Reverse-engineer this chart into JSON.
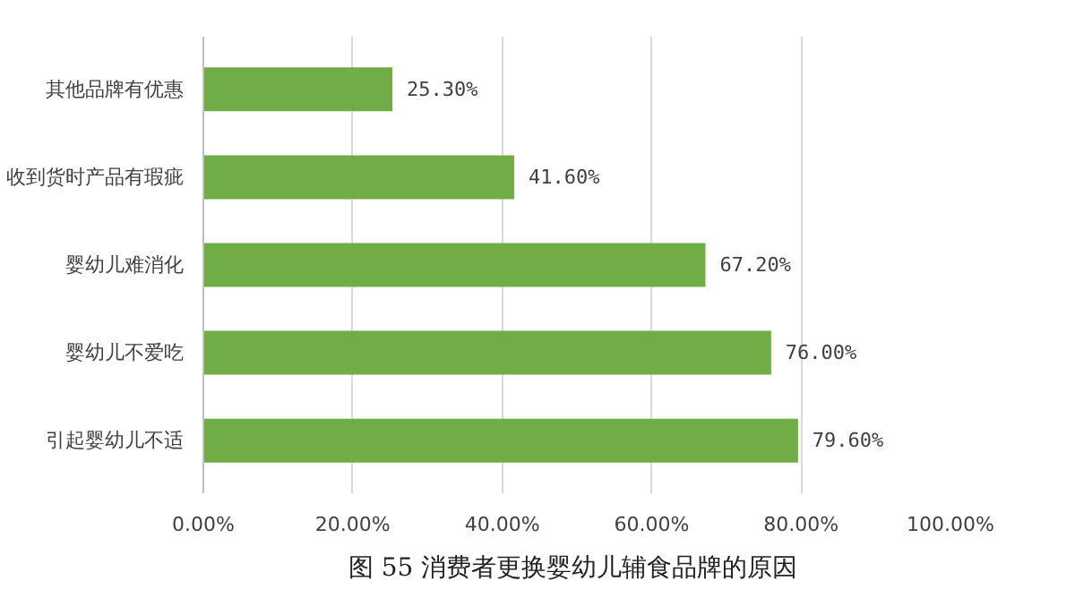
{
  "chart_data": {
    "type": "bar",
    "orientation": "horizontal",
    "title": "图 55  消费者更换婴幼儿辅食品牌的原因",
    "categories": [
      "其他品牌有优惠",
      "收到货时产品有瑕疵",
      "婴幼儿难消化",
      "婴幼儿不爱吃",
      "引起婴幼儿不适"
    ],
    "values": [
      25.3,
      41.6,
      67.2,
      76.0,
      79.6
    ],
    "value_labels": [
      "25.30%",
      "41.60%",
      "67.20%",
      "76.00%",
      "79.60%"
    ],
    "color": "#70ad47",
    "xlim": [
      0,
      100
    ],
    "xticks": [
      {
        "value": 0,
        "label": "0.00%"
      },
      {
        "value": 20,
        "label": "20.00%"
      },
      {
        "value": 40,
        "label": "40.00%"
      },
      {
        "value": 60,
        "label": "60.00%"
      },
      {
        "value": 80,
        "label": "80.00%"
      },
      {
        "value": 100,
        "label": "100.00%"
      }
    ],
    "grid": "x"
  }
}
